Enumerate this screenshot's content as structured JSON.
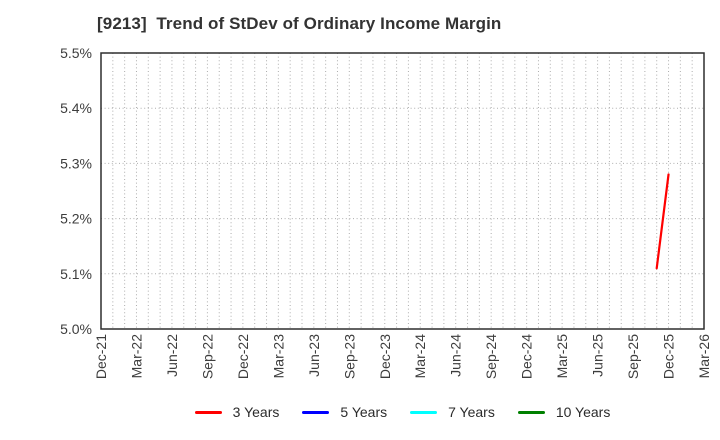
{
  "chart_data": {
    "type": "line",
    "title": "[9213]  Trend of StDev of Ordinary Income Margin",
    "xlabel": "",
    "ylabel": "",
    "ylim": [
      5.0,
      5.5
    ],
    "ytick_step": 0.1,
    "ytick_labels": [
      "5.0%",
      "5.1%",
      "5.2%",
      "5.3%",
      "5.4%",
      "5.5%"
    ],
    "x_total_months": 51,
    "x_range": [
      "Dec-21",
      "Mar-26"
    ],
    "grid": true,
    "grid_style": "dotted",
    "legend_position": "bottom",
    "xtick_labels": [
      {
        "label": "Dec-21",
        "month_index": 0
      },
      {
        "label": "Mar-22",
        "month_index": 3
      },
      {
        "label": "Jun-22",
        "month_index": 6
      },
      {
        "label": "Sep-22",
        "month_index": 9
      },
      {
        "label": "Dec-22",
        "month_index": 12
      },
      {
        "label": "Mar-23",
        "month_index": 15
      },
      {
        "label": "Jun-23",
        "month_index": 18
      },
      {
        "label": "Sep-23",
        "month_index": 21
      },
      {
        "label": "Dec-23",
        "month_index": 24
      },
      {
        "label": "Mar-24",
        "month_index": 27
      },
      {
        "label": "Jun-24",
        "month_index": 30
      },
      {
        "label": "Sep-24",
        "month_index": 33
      },
      {
        "label": "Dec-24",
        "month_index": 36
      },
      {
        "label": "Mar-25",
        "month_index": 39
      },
      {
        "label": "Jun-25",
        "month_index": 42
      },
      {
        "label": "Sep-25",
        "month_index": 45
      },
      {
        "label": "Dec-25",
        "month_index": 48
      },
      {
        "label": "Mar-26",
        "month_index": 51
      }
    ],
    "series": [
      {
        "name": "3 Years",
        "color": "#ff0000",
        "points": [
          {
            "month_index": 47,
            "x_label": "Nov-25",
            "value": 5.11
          },
          {
            "month_index": 48,
            "x_label": "Dec-25",
            "value": 5.28
          }
        ]
      },
      {
        "name": "5 Years",
        "color": "#0000ff",
        "points": []
      },
      {
        "name": "7 Years",
        "color": "#00ffff",
        "points": []
      },
      {
        "name": "10 Years",
        "color": "#008000",
        "points": []
      }
    ]
  },
  "styles": {
    "grid_color": "#adadad",
    "spine_color": "#2e2e2e",
    "tick_label_color": "#3d3d3d",
    "title_color": "#333333",
    "background": "#ffffff"
  }
}
